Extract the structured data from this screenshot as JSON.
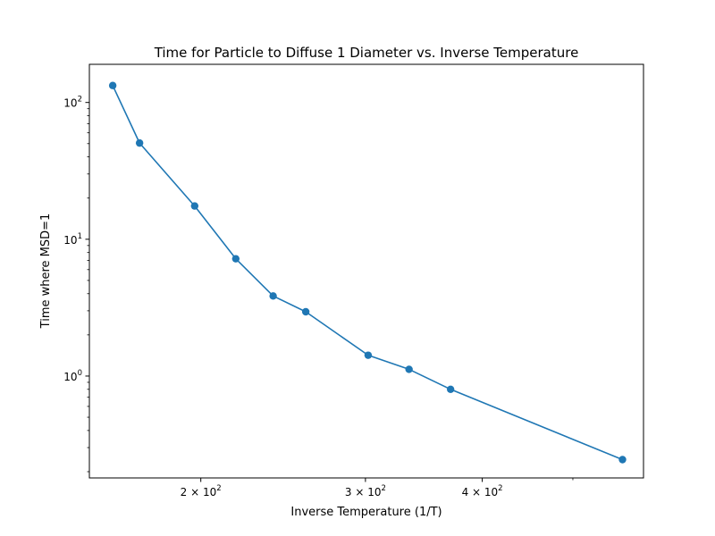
{
  "chart_data": {
    "type": "line",
    "title": "Time for Particle to Diffuse 1 Diameter vs. Inverse Temperature",
    "xlabel": "Inverse Temperature (1/T)",
    "ylabel": "Time where MSD=1",
    "xscale": "log",
    "yscale": "log",
    "xlim": [
      152,
      595
    ],
    "ylim": [
      0.18,
      190
    ],
    "grid": false,
    "x_major_ticks": [
      {
        "value": 200,
        "base": "2 × 10",
        "exp": "2"
      },
      {
        "value": 300,
        "base": "3 × 10",
        "exp": "2"
      },
      {
        "value": 400,
        "base": "4 × 10",
        "exp": "2"
      }
    ],
    "x_minor_ticks": [
      500
    ],
    "y_major_ticks": [
      {
        "value": 1,
        "base": "10",
        "exp": "0"
      },
      {
        "value": 10,
        "base": "10",
        "exp": "1"
      },
      {
        "value": 100,
        "base": "10",
        "exp": "2"
      }
    ],
    "y_minor_ticks": [
      0.2,
      0.3,
      0.4,
      0.5,
      0.6,
      0.7,
      0.8,
      0.9,
      2,
      3,
      4,
      5,
      6,
      7,
      8,
      9,
      20,
      30,
      40,
      50,
      60,
      70,
      80,
      90
    ],
    "series": [
      {
        "color": "#1f77b4",
        "x": [
          161,
          172,
          197,
          218,
          239,
          259,
          302,
          334,
          370,
          565
        ],
        "y": [
          133,
          50.5,
          17.5,
          7.2,
          3.85,
          2.95,
          1.42,
          1.12,
          0.8,
          0.245
        ]
      }
    ]
  }
}
